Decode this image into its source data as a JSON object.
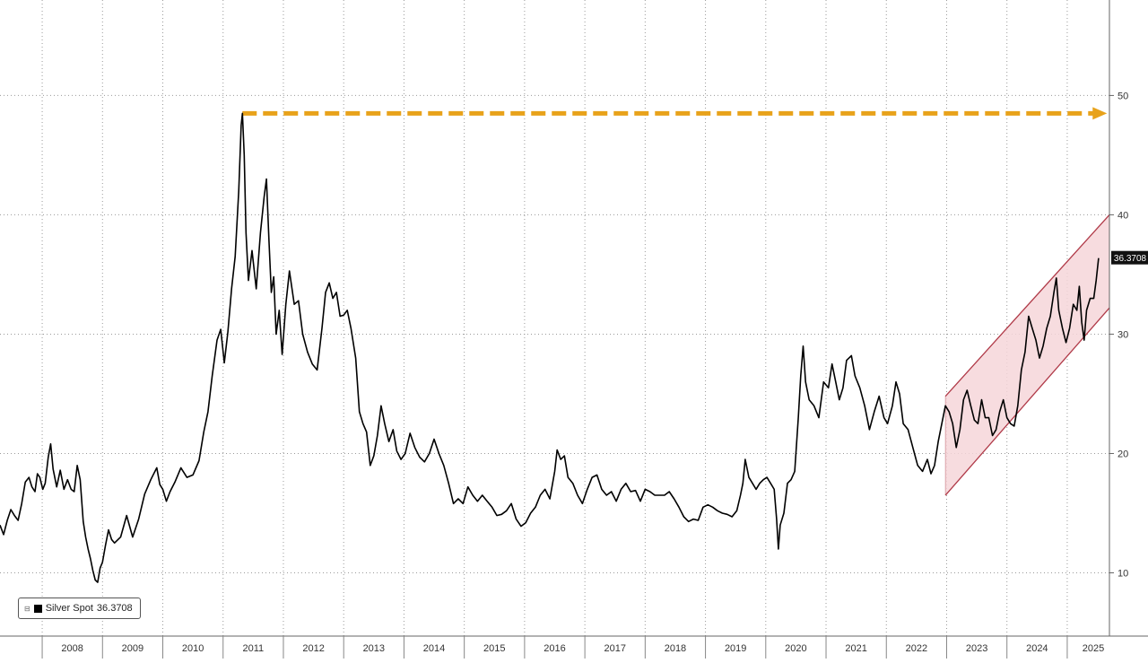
{
  "chart_data": {
    "type": "line",
    "title": "",
    "xlabel": "",
    "ylabel": "",
    "x_range": [
      2007.3,
      2025.7
    ],
    "ylim": [
      4.7,
      58
    ],
    "y_ticks": [
      10,
      20,
      30,
      40,
      50
    ],
    "x_tick_labels": [
      "2008",
      "2009",
      "2010",
      "2011",
      "2012",
      "2013",
      "2014",
      "2015",
      "2016",
      "2017",
      "2018",
      "2019",
      "2020",
      "2021",
      "2022",
      "2023",
      "2024",
      "2025"
    ],
    "grid": true,
    "grid_style": "dotted",
    "legend_position": "bottom-left",
    "last_value_label": "36.3708",
    "series": [
      {
        "name": "Silver Spot",
        "color": "#000000",
        "last_value": "36.3708",
        "points": [
          [
            2007.3,
            14.0
          ],
          [
            2007.36,
            13.2
          ],
          [
            2007.42,
            14.4
          ],
          [
            2007.48,
            15.3
          ],
          [
            2007.54,
            14.8
          ],
          [
            2007.6,
            14.4
          ],
          [
            2007.66,
            15.8
          ],
          [
            2007.72,
            17.6
          ],
          [
            2007.78,
            18.0
          ],
          [
            2007.83,
            17.2
          ],
          [
            2007.88,
            16.8
          ],
          [
            2007.92,
            18.3
          ],
          [
            2007.96,
            18.0
          ],
          [
            2008.01,
            17.0
          ],
          [
            2008.05,
            17.5
          ],
          [
            2008.1,
            19.7
          ],
          [
            2008.14,
            20.8
          ],
          [
            2008.18,
            18.7
          ],
          [
            2008.24,
            17.2
          ],
          [
            2008.3,
            18.6
          ],
          [
            2008.36,
            17.0
          ],
          [
            2008.42,
            17.8
          ],
          [
            2008.48,
            17.0
          ],
          [
            2008.53,
            16.8
          ],
          [
            2008.58,
            19.0
          ],
          [
            2008.63,
            17.8
          ],
          [
            2008.68,
            14.3
          ],
          [
            2008.72,
            13.0
          ],
          [
            2008.76,
            12.0
          ],
          [
            2008.8,
            11.2
          ],
          [
            2008.84,
            10.2
          ],
          [
            2008.88,
            9.4
          ],
          [
            2008.92,
            9.2
          ],
          [
            2008.96,
            10.4
          ],
          [
            2009.0,
            10.9
          ],
          [
            2009.05,
            12.3
          ],
          [
            2009.1,
            13.6
          ],
          [
            2009.15,
            12.8
          ],
          [
            2009.2,
            12.5
          ],
          [
            2009.3,
            13.0
          ],
          [
            2009.4,
            14.8
          ],
          [
            2009.5,
            13.0
          ],
          [
            2009.6,
            14.5
          ],
          [
            2009.7,
            16.6
          ],
          [
            2009.8,
            17.8
          ],
          [
            2009.9,
            18.8
          ],
          [
            2009.95,
            17.4
          ],
          [
            2010.0,
            17.0
          ],
          [
            2010.06,
            16.0
          ],
          [
            2010.12,
            16.8
          ],
          [
            2010.2,
            17.6
          ],
          [
            2010.3,
            18.8
          ],
          [
            2010.4,
            18.0
          ],
          [
            2010.5,
            18.2
          ],
          [
            2010.6,
            19.4
          ],
          [
            2010.68,
            21.8
          ],
          [
            2010.75,
            23.5
          ],
          [
            2010.82,
            26.5
          ],
          [
            2010.9,
            29.5
          ],
          [
            2010.96,
            30.4
          ],
          [
            2011.02,
            27.6
          ],
          [
            2011.08,
            30.2
          ],
          [
            2011.14,
            33.8
          ],
          [
            2011.2,
            36.5
          ],
          [
            2011.26,
            42.0
          ],
          [
            2011.3,
            47.5
          ],
          [
            2011.32,
            48.5
          ],
          [
            2011.35,
            45.0
          ],
          [
            2011.38,
            38.5
          ],
          [
            2011.42,
            34.5
          ],
          [
            2011.48,
            37.0
          ],
          [
            2011.55,
            33.8
          ],
          [
            2011.62,
            38.5
          ],
          [
            2011.68,
            41.5
          ],
          [
            2011.72,
            43.0
          ],
          [
            2011.76,
            38.0
          ],
          [
            2011.8,
            33.5
          ],
          [
            2011.84,
            34.8
          ],
          [
            2011.88,
            30.0
          ],
          [
            2011.93,
            32.0
          ],
          [
            2011.98,
            28.3
          ],
          [
            2012.04,
            32.5
          ],
          [
            2012.1,
            35.3
          ],
          [
            2012.18,
            32.5
          ],
          [
            2012.25,
            32.8
          ],
          [
            2012.32,
            30.0
          ],
          [
            2012.4,
            28.5
          ],
          [
            2012.48,
            27.5
          ],
          [
            2012.56,
            27.0
          ],
          [
            2012.64,
            30.5
          ],
          [
            2012.7,
            33.5
          ],
          [
            2012.76,
            34.3
          ],
          [
            2012.82,
            33.0
          ],
          [
            2012.88,
            33.5
          ],
          [
            2012.94,
            31.5
          ],
          [
            2013.0,
            31.6
          ],
          [
            2013.06,
            32.0
          ],
          [
            2013.12,
            30.5
          ],
          [
            2013.2,
            28.0
          ],
          [
            2013.26,
            23.5
          ],
          [
            2013.32,
            22.5
          ],
          [
            2013.38,
            21.8
          ],
          [
            2013.44,
            19.0
          ],
          [
            2013.5,
            19.8
          ],
          [
            2013.56,
            21.5
          ],
          [
            2013.62,
            24.0
          ],
          [
            2013.68,
            22.5
          ],
          [
            2013.75,
            21.0
          ],
          [
            2013.82,
            22.0
          ],
          [
            2013.88,
            20.2
          ],
          [
            2013.95,
            19.5
          ],
          [
            2014.02,
            20.0
          ],
          [
            2014.1,
            21.7
          ],
          [
            2014.18,
            20.5
          ],
          [
            2014.26,
            19.7
          ],
          [
            2014.34,
            19.3
          ],
          [
            2014.42,
            20.0
          ],
          [
            2014.5,
            21.2
          ],
          [
            2014.58,
            20.0
          ],
          [
            2014.66,
            19.0
          ],
          [
            2014.74,
            17.5
          ],
          [
            2014.82,
            15.8
          ],
          [
            2014.9,
            16.2
          ],
          [
            2014.98,
            15.8
          ],
          [
            2015.06,
            17.2
          ],
          [
            2015.14,
            16.5
          ],
          [
            2015.22,
            16.0
          ],
          [
            2015.3,
            16.5
          ],
          [
            2015.38,
            16.0
          ],
          [
            2015.46,
            15.5
          ],
          [
            2015.54,
            14.8
          ],
          [
            2015.62,
            14.9
          ],
          [
            2015.7,
            15.2
          ],
          [
            2015.78,
            15.8
          ],
          [
            2015.86,
            14.5
          ],
          [
            2015.94,
            13.9
          ],
          [
            2016.02,
            14.2
          ],
          [
            2016.1,
            15.0
          ],
          [
            2016.18,
            15.5
          ],
          [
            2016.26,
            16.5
          ],
          [
            2016.34,
            17.0
          ],
          [
            2016.42,
            16.2
          ],
          [
            2016.5,
            18.5
          ],
          [
            2016.54,
            20.3
          ],
          [
            2016.6,
            19.5
          ],
          [
            2016.66,
            19.8
          ],
          [
            2016.72,
            18.0
          ],
          [
            2016.8,
            17.5
          ],
          [
            2016.88,
            16.5
          ],
          [
            2016.96,
            15.8
          ],
          [
            2017.04,
            17.0
          ],
          [
            2017.12,
            18.0
          ],
          [
            2017.2,
            18.2
          ],
          [
            2017.28,
            17.0
          ],
          [
            2017.36,
            16.5
          ],
          [
            2017.44,
            16.8
          ],
          [
            2017.52,
            16.0
          ],
          [
            2017.6,
            17.0
          ],
          [
            2017.68,
            17.5
          ],
          [
            2017.76,
            16.8
          ],
          [
            2017.84,
            16.9
          ],
          [
            2017.92,
            16.0
          ],
          [
            2018.0,
            17.0
          ],
          [
            2018.08,
            16.8
          ],
          [
            2018.16,
            16.5
          ],
          [
            2018.24,
            16.5
          ],
          [
            2018.32,
            16.5
          ],
          [
            2018.4,
            16.8
          ],
          [
            2018.48,
            16.2
          ],
          [
            2018.56,
            15.5
          ],
          [
            2018.64,
            14.7
          ],
          [
            2018.72,
            14.3
          ],
          [
            2018.8,
            14.5
          ],
          [
            2018.88,
            14.4
          ],
          [
            2018.96,
            15.5
          ],
          [
            2019.04,
            15.7
          ],
          [
            2019.12,
            15.5
          ],
          [
            2019.2,
            15.2
          ],
          [
            2019.28,
            15.0
          ],
          [
            2019.36,
            14.9
          ],
          [
            2019.44,
            14.7
          ],
          [
            2019.52,
            15.2
          ],
          [
            2019.58,
            16.5
          ],
          [
            2019.62,
            17.5
          ],
          [
            2019.66,
            19.5
          ],
          [
            2019.72,
            18.0
          ],
          [
            2019.78,
            17.5
          ],
          [
            2019.84,
            17.0
          ],
          [
            2019.9,
            17.5
          ],
          [
            2019.96,
            17.8
          ],
          [
            2020.02,
            18.0
          ],
          [
            2020.08,
            17.5
          ],
          [
            2020.14,
            17.0
          ],
          [
            2020.18,
            14.5
          ],
          [
            2020.21,
            12.0
          ],
          [
            2020.24,
            14.0
          ],
          [
            2020.3,
            15.0
          ],
          [
            2020.36,
            17.5
          ],
          [
            2020.42,
            17.8
          ],
          [
            2020.48,
            18.5
          ],
          [
            2020.54,
            23.0
          ],
          [
            2020.58,
            26.5
          ],
          [
            2020.62,
            29.0
          ],
          [
            2020.66,
            26.0
          ],
          [
            2020.72,
            24.5
          ],
          [
            2020.8,
            24.0
          ],
          [
            2020.88,
            23.0
          ],
          [
            2020.96,
            26.0
          ],
          [
            2021.04,
            25.5
          ],
          [
            2021.1,
            27.5
          ],
          [
            2021.16,
            26.0
          ],
          [
            2021.22,
            24.5
          ],
          [
            2021.28,
            25.5
          ],
          [
            2021.34,
            27.8
          ],
          [
            2021.42,
            28.2
          ],
          [
            2021.48,
            26.5
          ],
          [
            2021.56,
            25.5
          ],
          [
            2021.64,
            24.0
          ],
          [
            2021.72,
            22.0
          ],
          [
            2021.8,
            23.5
          ],
          [
            2021.88,
            24.8
          ],
          [
            2021.96,
            23.0
          ],
          [
            2022.02,
            22.5
          ],
          [
            2022.1,
            24.0
          ],
          [
            2022.16,
            26.0
          ],
          [
            2022.22,
            25.0
          ],
          [
            2022.28,
            22.5
          ],
          [
            2022.36,
            22.0
          ],
          [
            2022.44,
            20.5
          ],
          [
            2022.52,
            19.0
          ],
          [
            2022.6,
            18.5
          ],
          [
            2022.68,
            19.5
          ],
          [
            2022.74,
            18.3
          ],
          [
            2022.8,
            19.0
          ],
          [
            2022.86,
            21.0
          ],
          [
            2022.92,
            22.5
          ],
          [
            2022.98,
            24.0
          ],
          [
            2023.04,
            23.5
          ],
          [
            2023.1,
            22.5
          ],
          [
            2023.16,
            20.5
          ],
          [
            2023.22,
            22.0
          ],
          [
            2023.28,
            24.5
          ],
          [
            2023.34,
            25.3
          ],
          [
            2023.4,
            24.0
          ],
          [
            2023.46,
            22.8
          ],
          [
            2023.52,
            22.5
          ],
          [
            2023.58,
            24.5
          ],
          [
            2023.64,
            23.0
          ],
          [
            2023.7,
            23.0
          ],
          [
            2023.76,
            21.5
          ],
          [
            2023.82,
            22.0
          ],
          [
            2023.88,
            23.5
          ],
          [
            2023.94,
            24.5
          ],
          [
            2024.0,
            23.0
          ],
          [
            2024.06,
            22.5
          ],
          [
            2024.12,
            22.3
          ],
          [
            2024.18,
            24.0
          ],
          [
            2024.24,
            27.0
          ],
          [
            2024.3,
            28.5
          ],
          [
            2024.36,
            31.5
          ],
          [
            2024.42,
            30.5
          ],
          [
            2024.48,
            29.5
          ],
          [
            2024.54,
            28.0
          ],
          [
            2024.6,
            29.0
          ],
          [
            2024.66,
            30.5
          ],
          [
            2024.72,
            31.5
          ],
          [
            2024.78,
            33.5
          ],
          [
            2024.82,
            34.7
          ],
          [
            2024.86,
            32.0
          ],
          [
            2024.92,
            30.5
          ],
          [
            2024.98,
            29.3
          ],
          [
            2025.04,
            30.5
          ],
          [
            2025.1,
            32.5
          ],
          [
            2025.16,
            32.0
          ],
          [
            2025.2,
            34.0
          ],
          [
            2025.24,
            31.0
          ],
          [
            2025.28,
            29.5
          ],
          [
            2025.32,
            32.0
          ],
          [
            2025.38,
            33.0
          ],
          [
            2025.44,
            33.0
          ],
          [
            2025.48,
            34.5
          ],
          [
            2025.52,
            36.3708
          ]
        ]
      },
      {
        "name": "",
        "role": "reference",
        "style": "dashed-arrow",
        "color": "#e8a21a",
        "points": [
          [
            2011.32,
            48.5
          ],
          [
            2025.6,
            48.5
          ]
        ]
      }
    ],
    "annotations": [
      {
        "type": "channel",
        "fill": "#f6d6d9",
        "stroke": "#b03a48",
        "upper": [
          [
            2022.98,
            24.8
          ],
          [
            2025.7,
            40.0
          ]
        ],
        "lower": [
          [
            2022.98,
            16.5
          ],
          [
            2025.7,
            32.2
          ]
        ]
      }
    ]
  }
}
